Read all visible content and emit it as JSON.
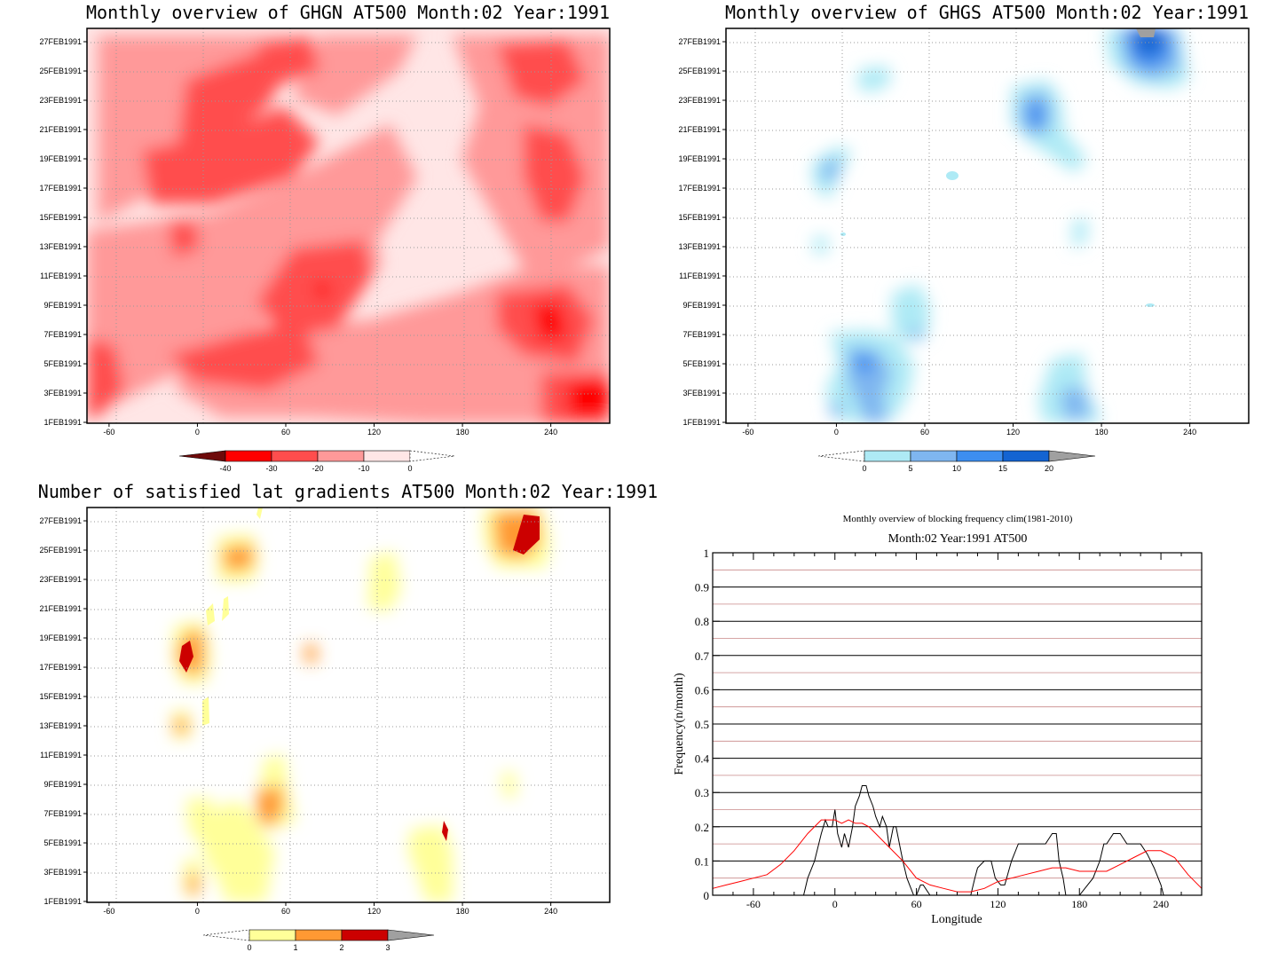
{
  "chart_data": [
    {
      "type": "heatmap",
      "title": "Monthly overview of GHGN AT500 Month:02 Year:1991",
      "x_ticks": [
        "-60",
        "0",
        "60",
        "120",
        "180",
        "240"
      ],
      "x_tick_values": [
        -60,
        0,
        60,
        120,
        180,
        240
      ],
      "xlim": [
        -75,
        280
      ],
      "y_ticks": [
        "1FEB1991",
        "3FEB1991",
        "5FEB1991",
        "7FEB1991",
        "9FEB1991",
        "11FEB1991",
        "13FEB1991",
        "15FEB1991",
        "17FEB1991",
        "19FEB1991",
        "21FEB1991",
        "23FEB1991",
        "25FEB1991",
        "27FEB1991"
      ],
      "colorbar": {
        "labels": [
          "-40",
          "-30",
          "-20",
          "-10",
          "0"
        ],
        "colors": [
          "#6e0a0a",
          "#ff0000",
          "#ff4d4d",
          "#ff9999",
          "#ffe6e6"
        ]
      },
      "grid": true
    },
    {
      "type": "heatmap",
      "title": "Monthly overview of GHGS AT500 Month:02 Year:1991",
      "x_ticks": [
        "-60",
        "0",
        "60",
        "120",
        "180",
        "240"
      ],
      "x_tick_values": [
        -60,
        0,
        60,
        120,
        180,
        240
      ],
      "xlim": [
        -75,
        280
      ],
      "y_ticks": [
        "1FEB1991",
        "3FEB1991",
        "5FEB1991",
        "7FEB1991",
        "9FEB1991",
        "11FEB1991",
        "13FEB1991",
        "15FEB1991",
        "17FEB1991",
        "19FEB1991",
        "21FEB1991",
        "23FEB1991",
        "25FEB1991",
        "27FEB1991"
      ],
      "colorbar": {
        "labels": [
          "0",
          "5",
          "10",
          "15",
          "20"
        ],
        "colors": [
          "#aeeaf5",
          "#7fb6f0",
          "#3d8ef0",
          "#1464d2",
          "#a0a0a0"
        ]
      },
      "grid": true
    },
    {
      "type": "heatmap",
      "title": "Number of satisfied lat gradients AT500 Month:02 Year:1991",
      "x_ticks": [
        "-60",
        "0",
        "60",
        "120",
        "180",
        "240"
      ],
      "x_tick_values": [
        -60,
        0,
        60,
        120,
        180,
        240
      ],
      "xlim": [
        -75,
        280
      ],
      "y_ticks": [
        "1FEB1991",
        "3FEB1991",
        "5FEB1991",
        "7FEB1991",
        "9FEB1991",
        "11FEB1991",
        "13FEB1991",
        "15FEB1991",
        "17FEB1991",
        "19FEB1991",
        "21FEB1991",
        "23FEB1991",
        "25FEB1991",
        "27FEB1991"
      ],
      "colorbar": {
        "labels": [
          "0",
          "1",
          "2",
          "3"
        ],
        "colors": [
          "#ffff99",
          "#ff9933",
          "#cc0000",
          "#a0a0a0"
        ]
      },
      "grid": true
    },
    {
      "type": "line",
      "title": "Monthly overview of blocking frequency clim(1981-2010)",
      "subtitle": "Month:02 Year:1991  AT500",
      "xlabel": "Longitude",
      "ylabel": "Frequency(n/month)",
      "xlim": [
        -90,
        270
      ],
      "ylim": [
        0,
        1
      ],
      "x_ticks": [
        "-60",
        "0",
        "60",
        "120",
        "180",
        "240"
      ],
      "x_tick_values": [
        -60,
        0,
        60,
        120,
        180,
        240
      ],
      "y_ticks": [
        "0",
        "0.1",
        "0.2",
        "0.3",
        "0.4",
        "0.5",
        "0.6",
        "0.7",
        "0.8",
        "0.9",
        "1"
      ],
      "y_tick_values": [
        0,
        0.1,
        0.2,
        0.3,
        0.4,
        0.5,
        0.6,
        0.7,
        0.8,
        0.9,
        1
      ],
      "series": [
        {
          "color": "#000000",
          "x": [
            -23,
            -20,
            -15,
            -10,
            -7,
            -5,
            -2,
            0,
            2,
            5,
            7,
            10,
            13,
            15,
            18,
            20,
            23,
            25,
            28,
            30,
            33,
            35,
            38,
            40,
            43,
            45,
            48,
            50,
            53,
            55,
            58,
            60,
            63,
            65,
            70,
            75,
            100,
            103,
            105,
            110,
            115,
            118,
            122,
            125,
            130,
            132,
            135,
            140,
            145,
            150,
            155,
            160,
            163,
            165,
            168,
            170,
            175,
            180,
            190,
            195,
            198,
            200,
            205,
            210,
            215,
            220,
            225,
            230,
            235,
            240,
            242
          ],
          "y": [
            0,
            0.05,
            0.1,
            0.18,
            0.22,
            0.2,
            0.2,
            0.25,
            0.18,
            0.14,
            0.18,
            0.14,
            0.2,
            0.26,
            0.29,
            0.32,
            0.32,
            0.29,
            0.26,
            0.23,
            0.2,
            0.23,
            0.2,
            0.14,
            0.2,
            0.2,
            0.14,
            0.1,
            0.05,
            0.03,
            0,
            0,
            0.03,
            0.03,
            0,
            0,
            0,
            0.05,
            0.08,
            0.1,
            0.1,
            0.05,
            0.03,
            0.03,
            0.1,
            0.12,
            0.15,
            0.15,
            0.15,
            0.15,
            0.15,
            0.18,
            0.18,
            0.1,
            0.05,
            0,
            0,
            0,
            0.05,
            0.1,
            0.15,
            0.15,
            0.18,
            0.18,
            0.15,
            0.15,
            0.15,
            0.12,
            0.08,
            0.03,
            0
          ]
        },
        {
          "color": "#ff0000",
          "x": [
            -90,
            -80,
            -70,
            -60,
            -50,
            -40,
            -30,
            -20,
            -10,
            0,
            5,
            10,
            15,
            20,
            25,
            30,
            40,
            50,
            60,
            70,
            80,
            90,
            100,
            110,
            120,
            130,
            140,
            150,
            160,
            170,
            180,
            190,
            200,
            210,
            220,
            230,
            240,
            250,
            260,
            270
          ],
          "y": [
            0.02,
            0.03,
            0.04,
            0.05,
            0.06,
            0.09,
            0.13,
            0.18,
            0.22,
            0.22,
            0.21,
            0.22,
            0.21,
            0.21,
            0.2,
            0.18,
            0.14,
            0.1,
            0.05,
            0.03,
            0.02,
            0.01,
            0.01,
            0.02,
            0.04,
            0.05,
            0.06,
            0.07,
            0.08,
            0.08,
            0.07,
            0.07,
            0.07,
            0.09,
            0.11,
            0.13,
            0.13,
            0.11,
            0.06,
            0.02
          ]
        }
      ],
      "grid": true
    }
  ]
}
